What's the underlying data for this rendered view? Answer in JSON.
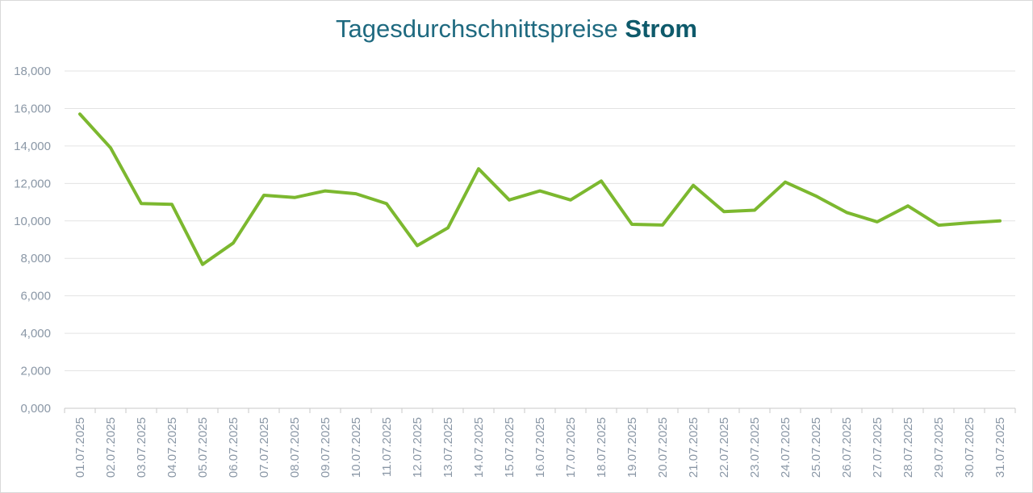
{
  "chart_data": {
    "type": "line",
    "title": "Tagesdurchschnittspreise",
    "title_emphasis": "Strom",
    "xlabel": "",
    "ylabel": "",
    "ylim": [
      0,
      18
    ],
    "yticks": [
      "0,000",
      "2,000",
      "4,000",
      "6,000",
      "8,000",
      "10,000",
      "12,000",
      "14,000",
      "16,000",
      "18,000"
    ],
    "grid": true,
    "line_color": "#7cb82f",
    "categories": [
      "01.07.2025",
      "02.07.2025",
      "03.07.2025",
      "04.07.2025",
      "05.07.2025",
      "06.07.2025",
      "07.07.2025",
      "08.07.2025",
      "09.07.2025",
      "10.07.2025",
      "11.07.2025",
      "12.07.2025",
      "13.07.2025",
      "14.07.2025",
      "15.07.2025",
      "16.07.2025",
      "17.07.2025",
      "18.07.2025",
      "19.07.2025",
      "20.07.2025",
      "21.07.2025",
      "22.07.2025",
      "23.07.2025",
      "24.07.2025",
      "25.07.2025",
      "26.07.2025",
      "27.07.2025",
      "28.07.2025",
      "29.07.2025",
      "30.07.2025",
      "31.07.2025"
    ],
    "series": [
      {
        "values": [
          15.7,
          13.9,
          10.93,
          10.88,
          7.68,
          8.82,
          11.37,
          11.25,
          11.6,
          11.45,
          10.92,
          8.68,
          9.63,
          12.78,
          11.12,
          11.6,
          11.12,
          12.13,
          9.82,
          9.78,
          11.9,
          10.5,
          10.57,
          12.07,
          11.33,
          10.45,
          9.95,
          10.8,
          9.77,
          9.9,
          10.0
        ]
      }
    ]
  }
}
